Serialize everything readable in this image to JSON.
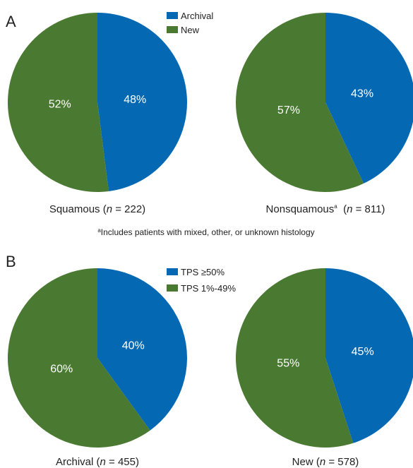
{
  "panels": [
    "A",
    "B"
  ],
  "footnote": {
    "marker": "a",
    "text": "Includes patients with mixed, other, or unknown histology"
  },
  "chart_data": [
    {
      "type": "pie",
      "title_parts": [
        "Squamous (",
        "n",
        " = 222)"
      ],
      "categories": [
        "Archival",
        "New"
      ],
      "values": [
        48,
        52
      ],
      "value_labels": [
        "48%",
        "52%"
      ],
      "colors": [
        "#0568b3",
        "#4a7a32"
      ]
    },
    {
      "type": "pie",
      "title_parts": [
        "Nonsquamous",
        "a",
        "  (",
        "n",
        " = 811)"
      ],
      "categories": [
        "Archival",
        "New"
      ],
      "values": [
        43,
        57
      ],
      "value_labels": [
        "43%",
        "57%"
      ],
      "colors": [
        "#0568b3",
        "#4a7a32"
      ]
    },
    {
      "type": "pie",
      "title_parts": [
        "Archival (",
        "n",
        " = 455)"
      ],
      "categories": [
        "TPS ≥50%",
        "TPS 1%-49%"
      ],
      "values": [
        40,
        60
      ],
      "value_labels": [
        "40%",
        "60%"
      ],
      "colors": [
        "#0568b3",
        "#4a7a32"
      ]
    },
    {
      "type": "pie",
      "title_parts": [
        "New (",
        "n",
        " = 578)"
      ],
      "categories": [
        "TPS ≥50%",
        "TPS 1%-49%"
      ],
      "values": [
        45,
        55
      ],
      "value_labels": [
        "45%",
        "55%"
      ],
      "colors": [
        "#0568b3",
        "#4a7a32"
      ]
    }
  ]
}
